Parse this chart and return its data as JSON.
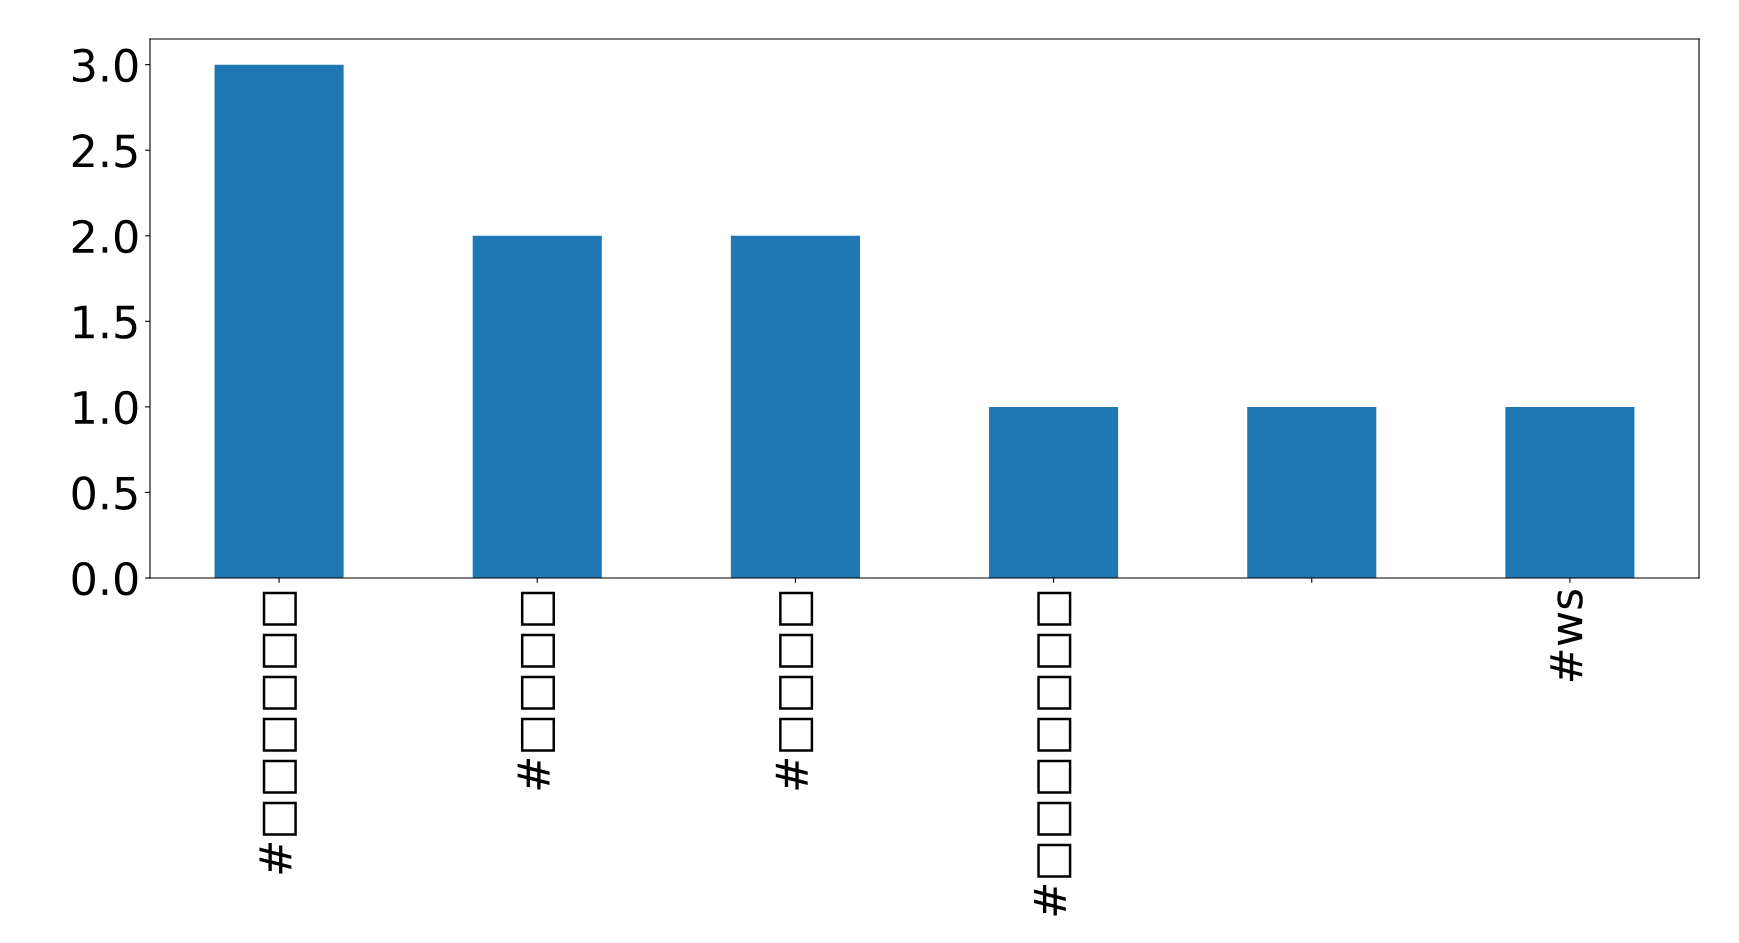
{
  "chart_data": {
    "type": "bar",
    "categories": [
      "#□□□□□□",
      "#□□□□",
      "#□□□□",
      "#□□□□□□□",
      null,
      "#ws"
    ],
    "values": [
      3,
      2,
      2,
      1,
      1,
      1
    ],
    "color": "#1f77b4",
    "ylim": [
      0,
      3.15
    ],
    "yticks": [
      {
        "value": 0,
        "label": "0.0"
      },
      0.5,
      {
        "value": 1,
        "label": "1.0"
      },
      1.5,
      {
        "value": 2,
        "label": "2.0"
      },
      2.5,
      {
        "value": 3,
        "label": "3.0"
      }
    ],
    "grid": false,
    "legend": false
  }
}
